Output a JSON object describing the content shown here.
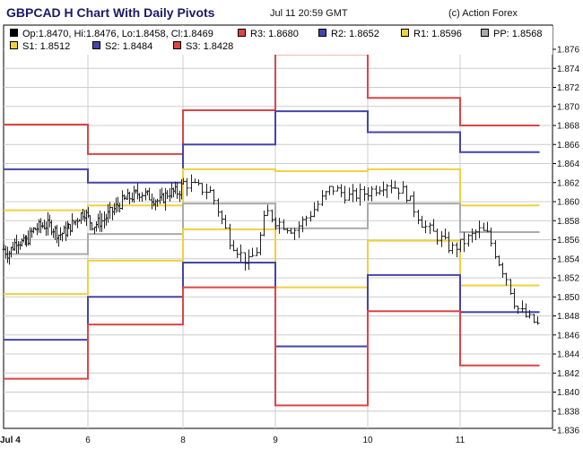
{
  "header": {
    "title": "GBPCAD H Chart With Daily Pivots",
    "timestamp": "Jul 11 20:59 GMT",
    "credit": "(c) Action Forex"
  },
  "legend": [
    {
      "label": "Op:1.8470, Hi:1.8476, Lo:1.8458, Cl:1.8469",
      "color": "#000000"
    },
    {
      "label": "R3: 1.8680",
      "color": "#dd4444"
    },
    {
      "label": "R2: 1.8652",
      "color": "#4444aa"
    },
    {
      "label": "R1: 1.8596",
      "color": "#f0d040"
    },
    {
      "label": "PP: 1.8568",
      "color": "#aaaaaa"
    },
    {
      "label": "S1: 1.8512",
      "color": "#f0d040"
    },
    {
      "label": "S2: 1.8484",
      "color": "#4444aa"
    },
    {
      "label": "S3: 1.8428",
      "color": "#dd4444"
    }
  ],
  "chart_data": {
    "type": "line",
    "y_ticks": [
      "1.876",
      "1.874",
      "1.872",
      "1.870",
      "1.868",
      "1.866",
      "1.864",
      "1.862",
      "1.860",
      "1.858",
      "1.856",
      "1.854",
      "1.852",
      "1.850",
      "1.848",
      "1.846",
      "1.844",
      "1.842",
      "1.840",
      "1.838",
      "1.836"
    ],
    "x_ticks": [
      {
        "label": "Jul 4",
        "x": 4
      },
      {
        "label": "6",
        "x": 6
      },
      {
        "label": "8",
        "x": 8
      },
      {
        "label": "9",
        "x": 9
      },
      {
        "label": "10",
        "x": 10
      },
      {
        "label": "11",
        "x": 11
      }
    ],
    "ylim": [
      1.835,
      1.877
    ],
    "xlim": [
      4,
      11.86
    ],
    "grid": true,
    "pivot_days": [
      4,
      6,
      8,
      9,
      10,
      11
    ],
    "pivot_series": [
      {
        "name": "R3",
        "color": "#dd4444",
        "values": [
          1.8681,
          1.865,
          1.8696,
          1.8755,
          1.8709,
          1.868
        ]
      },
      {
        "name": "R2",
        "color": "#4444aa",
        "values": [
          1.8634,
          1.862,
          1.866,
          1.8695,
          1.8673,
          1.8652
        ]
      },
      {
        "name": "R1",
        "color": "#f0d040",
        "values": [
          1.8591,
          1.8596,
          1.8634,
          1.8632,
          1.8634,
          1.8596
        ]
      },
      {
        "name": "PP",
        "color": "#aaaaaa",
        "values": [
          1.8545,
          1.8566,
          1.8598,
          1.8572,
          1.8598,
          1.8568
        ]
      },
      {
        "name": "S1",
        "color": "#f0d040",
        "values": [
          1.8503,
          1.8538,
          1.8571,
          1.851,
          1.8559,
          1.8512
        ]
      },
      {
        "name": "S2",
        "color": "#4444aa",
        "values": [
          1.8455,
          1.85,
          1.8536,
          1.8448,
          1.8523,
          1.8484
        ]
      },
      {
        "name": "S3",
        "color": "#dd4444",
        "values": [
          1.8414,
          1.8471,
          1.851,
          1.8386,
          1.8485,
          1.8428
        ]
      }
    ],
    "price_anchors": [
      [
        4.0,
        1.855
      ],
      [
        4.1,
        1.8545
      ],
      [
        4.3,
        1.856
      ],
      [
        4.5,
        1.8555
      ],
      [
        4.7,
        1.857
      ],
      [
        4.9,
        1.8575
      ],
      [
        5.1,
        1.8575
      ],
      [
        5.3,
        1.8565
      ],
      [
        5.5,
        1.857
      ],
      [
        5.7,
        1.858
      ],
      [
        5.9,
        1.859
      ],
      [
        6.1,
        1.8575
      ],
      [
        6.3,
        1.858
      ],
      [
        6.5,
        1.859
      ],
      [
        6.7,
        1.86
      ],
      [
        6.9,
        1.8605
      ],
      [
        7.1,
        1.861
      ],
      [
        7.3,
        1.8605
      ],
      [
        7.5,
        1.86
      ],
      [
        7.7,
        1.861
      ],
      [
        7.9,
        1.861
      ],
      [
        8.0,
        1.862
      ],
      [
        8.3,
        1.861
      ],
      [
        8.5,
        1.856
      ],
      [
        8.7,
        1.8535
      ],
      [
        8.8,
        1.855
      ],
      [
        8.9,
        1.859
      ],
      [
        9.0,
        1.858
      ],
      [
        9.2,
        1.857
      ],
      [
        9.4,
        1.859
      ],
      [
        9.6,
        1.8615
      ],
      [
        9.8,
        1.8605
      ],
      [
        10.0,
        1.861
      ],
      [
        10.2,
        1.862
      ],
      [
        10.4,
        1.861
      ],
      [
        10.6,
        1.8575
      ],
      [
        10.8,
        1.856
      ],
      [
        10.9,
        1.855
      ],
      [
        11.0,
        1.8555
      ],
      [
        11.2,
        1.857
      ],
      [
        11.3,
        1.8565
      ],
      [
        11.4,
        1.854
      ],
      [
        11.5,
        1.852
      ],
      [
        11.6,
        1.849
      ],
      [
        11.7,
        1.848
      ],
      [
        11.86,
        1.8469
      ]
    ],
    "ohlc_last": {
      "open": 1.847,
      "high": 1.8476,
      "low": 1.8458,
      "close": 1.8469
    }
  },
  "colors": {
    "title": "#1a1a66",
    "grid": "#cccccc",
    "bars": "#222222"
  }
}
